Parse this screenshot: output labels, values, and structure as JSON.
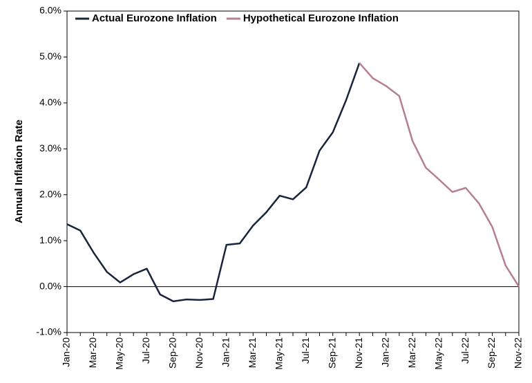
{
  "chart_data": {
    "type": "line",
    "y_label": "Annual Inflation Rate",
    "categories": [
      "Jan-20",
      null,
      "Mar-20",
      null,
      "May-20",
      null,
      "Jul-20",
      null,
      "Sep-20",
      null,
      "Nov-20",
      null,
      "Jan-21",
      null,
      "Mar-21",
      null,
      "May-21",
      null,
      "Jul-21",
      null,
      "Sep-21",
      null,
      "Nov-21",
      null,
      "Jan-22",
      null,
      "Mar-22",
      null,
      "May-22",
      null,
      "Jul-22",
      null,
      "Sep-22",
      null,
      "Nov-22"
    ],
    "series": [
      {
        "name": "Actual Eurozone Inflation",
        "color": "#17243c",
        "values": [
          1.36,
          1.22,
          0.74,
          0.32,
          0.09,
          0.27,
          0.39,
          -0.17,
          -0.32,
          -0.28,
          -0.29,
          -0.27,
          0.91,
          0.94,
          1.33,
          1.62,
          1.98,
          1.9,
          2.16,
          2.96,
          3.36,
          4.06,
          4.87,
          null,
          null,
          null,
          null,
          null,
          null,
          null,
          null,
          null,
          null,
          null,
          null
        ]
      },
      {
        "name": "Hypothetical Eurozone Inflation",
        "color": "#b57f93",
        "values": [
          null,
          null,
          null,
          null,
          null,
          null,
          null,
          null,
          null,
          null,
          null,
          null,
          null,
          null,
          null,
          null,
          null,
          null,
          null,
          null,
          null,
          null,
          4.87,
          4.54,
          4.37,
          4.15,
          3.17,
          2.59,
          2.33,
          2.06,
          2.15,
          1.81,
          1.3,
          0.46,
          0.0
        ]
      }
    ],
    "ylim": [
      -1,
      6
    ],
    "yticks": [
      {
        "value": -1,
        "label": "-1.0%"
      },
      {
        "value": 0,
        "label": "0.0%"
      },
      {
        "value": 1,
        "label": "1.0%"
      },
      {
        "value": 2,
        "label": "2.0%"
      },
      {
        "value": 3,
        "label": "3.0%"
      },
      {
        "value": 4,
        "label": "4.0%"
      },
      {
        "value": 5,
        "label": "5.0%"
      },
      {
        "value": 6,
        "label": "6.0%"
      }
    ],
    "legend": "top-left"
  }
}
